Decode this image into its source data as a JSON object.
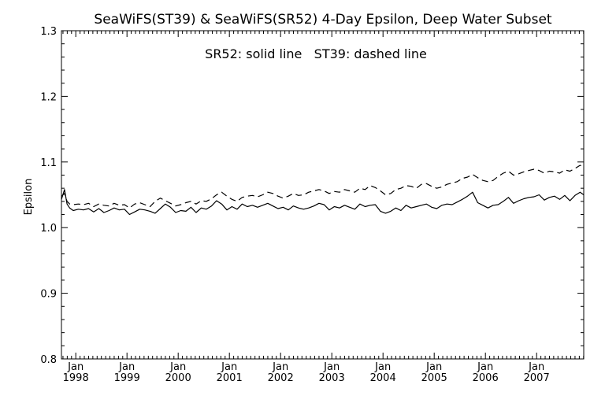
{
  "chart_data": {
    "type": "line",
    "title": "SeaWiFS(ST39) & SeaWiFS(SR52) 4-Day Epsilon, Deep Water Subset",
    "annotation": "SR52: solid line   ST39: dashed line",
    "ylabel": "Epsilon",
    "xlabel": "",
    "xlim": [
      1997.72,
      2007.92
    ],
    "ylim": [
      0.8,
      1.3
    ],
    "y_ticks": [
      "0.8",
      "0.9",
      "1.0",
      "1.1",
      "1.2",
      "1.3"
    ],
    "x_ticks": [
      {
        "label": "Jan",
        "year": "1998",
        "x": 1998.0
      },
      {
        "label": "Jan",
        "year": "1999",
        "x": 1999.0
      },
      {
        "label": "Jan",
        "year": "2000",
        "x": 2000.0
      },
      {
        "label": "Jan",
        "year": "2001",
        "x": 2001.0
      },
      {
        "label": "Jan",
        "year": "2002",
        "x": 2002.0
      },
      {
        "label": "Jan",
        "year": "2003",
        "x": 2003.0
      },
      {
        "label": "Jan",
        "year": "2004",
        "x": 2004.0
      },
      {
        "label": "Jan",
        "year": "2005",
        "x": 2005.0
      },
      {
        "label": "Jan",
        "year": "2006",
        "x": 2006.0
      },
      {
        "label": "Jan",
        "year": "2007",
        "x": 2007.0
      }
    ],
    "grid": false,
    "series": [
      {
        "name": "SR52",
        "style": "solid",
        "color": "#000000",
        "x": [
          1997.72,
          1997.78,
          1997.83,
          1997.88,
          1997.95,
          1998.05,
          1998.15,
          1998.25,
          1998.35,
          1998.45,
          1998.55,
          1998.65,
          1998.75,
          1998.85,
          1998.95,
          1999.05,
          1999.15,
          1999.25,
          1999.35,
          1999.45,
          1999.55,
          1999.65,
          1999.75,
          1999.85,
          1999.95,
          2000.05,
          2000.15,
          2000.25,
          2000.35,
          2000.45,
          2000.55,
          2000.65,
          2000.75,
          2000.85,
          2000.95,
          2001.05,
          2001.15,
          2001.25,
          2001.35,
          2001.45,
          2001.55,
          2001.65,
          2001.75,
          2001.85,
          2001.95,
          2002.05,
          2002.15,
          2002.25,
          2002.35,
          2002.45,
          2002.55,
          2002.65,
          2002.75,
          2002.85,
          2002.95,
          2003.05,
          2003.15,
          2003.25,
          2003.35,
          2003.45,
          2003.55,
          2003.65,
          2003.75,
          2003.85,
          2003.95,
          2004.05,
          2004.15,
          2004.25,
          2004.35,
          2004.45,
          2004.55,
          2004.65,
          2004.75,
          2004.85,
          2004.95,
          2005.05,
          2005.15,
          2005.25,
          2005.35,
          2005.45,
          2005.55,
          2005.65,
          2005.75,
          2005.85,
          2005.95,
          2006.05,
          2006.15,
          2006.25,
          2006.35,
          2006.45,
          2006.55,
          2006.65,
          2006.75,
          2006.85,
          2006.95,
          2007.05,
          2007.15,
          2007.25,
          2007.35,
          2007.45,
          2007.55,
          2007.65,
          2007.75,
          2007.85,
          2007.92
        ],
        "values": [
          1.043,
          1.058,
          1.036,
          1.03,
          1.026,
          1.028,
          1.027,
          1.029,
          1.024,
          1.029,
          1.023,
          1.026,
          1.03,
          1.027,
          1.028,
          1.02,
          1.024,
          1.028,
          1.027,
          1.025,
          1.022,
          1.029,
          1.036,
          1.031,
          1.023,
          1.026,
          1.025,
          1.031,
          1.023,
          1.03,
          1.028,
          1.033,
          1.041,
          1.036,
          1.027,
          1.032,
          1.028,
          1.036,
          1.032,
          1.034,
          1.031,
          1.034,
          1.037,
          1.033,
          1.029,
          1.031,
          1.027,
          1.033,
          1.03,
          1.028,
          1.03,
          1.033,
          1.037,
          1.035,
          1.027,
          1.032,
          1.03,
          1.034,
          1.031,
          1.028,
          1.036,
          1.032,
          1.034,
          1.035,
          1.025,
          1.022,
          1.025,
          1.03,
          1.026,
          1.034,
          1.03,
          1.032,
          1.034,
          1.036,
          1.031,
          1.029,
          1.034,
          1.036,
          1.035,
          1.039,
          1.043,
          1.048,
          1.054,
          1.038,
          1.034,
          1.03,
          1.034,
          1.035,
          1.04,
          1.046,
          1.037,
          1.041,
          1.044,
          1.046,
          1.047,
          1.05,
          1.042,
          1.046,
          1.048,
          1.043,
          1.049,
          1.041,
          1.049,
          1.054,
          1.05
        ]
      },
      {
        "name": "ST39",
        "style": "dashed",
        "color": "#000000",
        "x": [
          1997.72,
          1997.78,
          1997.83,
          1997.88,
          1997.95,
          1998.05,
          1998.15,
          1998.25,
          1998.35,
          1998.45,
          1998.55,
          1998.65,
          1998.75,
          1998.85,
          1998.95,
          1999.05,
          1999.15,
          1999.25,
          1999.35,
          1999.45,
          1999.55,
          1999.65,
          1999.75,
          1999.85,
          1999.95,
          2000.05,
          2000.15,
          2000.25,
          2000.35,
          2000.45,
          2000.55,
          2000.65,
          2000.75,
          2000.85,
          2000.95,
          2001.05,
          2001.15,
          2001.25,
          2001.35,
          2001.45,
          2001.55,
          2001.65,
          2001.75,
          2001.85,
          2001.95,
          2002.05,
          2002.15,
          2002.25,
          2002.35,
          2002.45,
          2002.55,
          2002.65,
          2002.75,
          2002.85,
          2002.95,
          2003.05,
          2003.15,
          2003.25,
          2003.35,
          2003.45,
          2003.55,
          2003.65,
          2003.75,
          2003.85,
          2003.95,
          2004.05,
          2004.15,
          2004.25,
          2004.35,
          2004.45,
          2004.55,
          2004.65,
          2004.75,
          2004.85,
          2004.95,
          2005.05,
          2005.15,
          2005.25,
          2005.35,
          2005.45,
          2005.55,
          2005.65,
          2005.75,
          2005.85,
          2005.95,
          2006.05,
          2006.15,
          2006.25,
          2006.35,
          2006.45,
          2006.55,
          2006.65,
          2006.75,
          2006.85,
          2006.95,
          2007.05,
          2007.15,
          2007.25,
          2007.35,
          2007.45,
          2007.55,
          2007.65,
          2007.75,
          2007.85,
          2007.92
        ],
        "values": [
          1.048,
          1.052,
          1.04,
          1.036,
          1.035,
          1.036,
          1.035,
          1.037,
          1.032,
          1.036,
          1.034,
          1.033,
          1.037,
          1.034,
          1.035,
          1.03,
          1.036,
          1.038,
          1.035,
          1.032,
          1.04,
          1.045,
          1.041,
          1.037,
          1.033,
          1.035,
          1.038,
          1.04,
          1.036,
          1.041,
          1.04,
          1.044,
          1.05,
          1.054,
          1.048,
          1.043,
          1.04,
          1.046,
          1.048,
          1.049,
          1.047,
          1.05,
          1.054,
          1.052,
          1.048,
          1.045,
          1.048,
          1.052,
          1.049,
          1.05,
          1.054,
          1.056,
          1.058,
          1.056,
          1.052,
          1.055,
          1.054,
          1.058,
          1.056,
          1.054,
          1.06,
          1.058,
          1.064,
          1.061,
          1.056,
          1.05,
          1.052,
          1.058,
          1.06,
          1.064,
          1.063,
          1.06,
          1.066,
          1.067,
          1.063,
          1.06,
          1.062,
          1.066,
          1.068,
          1.07,
          1.075,
          1.077,
          1.081,
          1.076,
          1.072,
          1.07,
          1.072,
          1.078,
          1.083,
          1.086,
          1.08,
          1.082,
          1.085,
          1.087,
          1.089,
          1.087,
          1.083,
          1.086,
          1.085,
          1.083,
          1.088,
          1.086,
          1.09,
          1.095,
          1.092
        ]
      }
    ]
  }
}
